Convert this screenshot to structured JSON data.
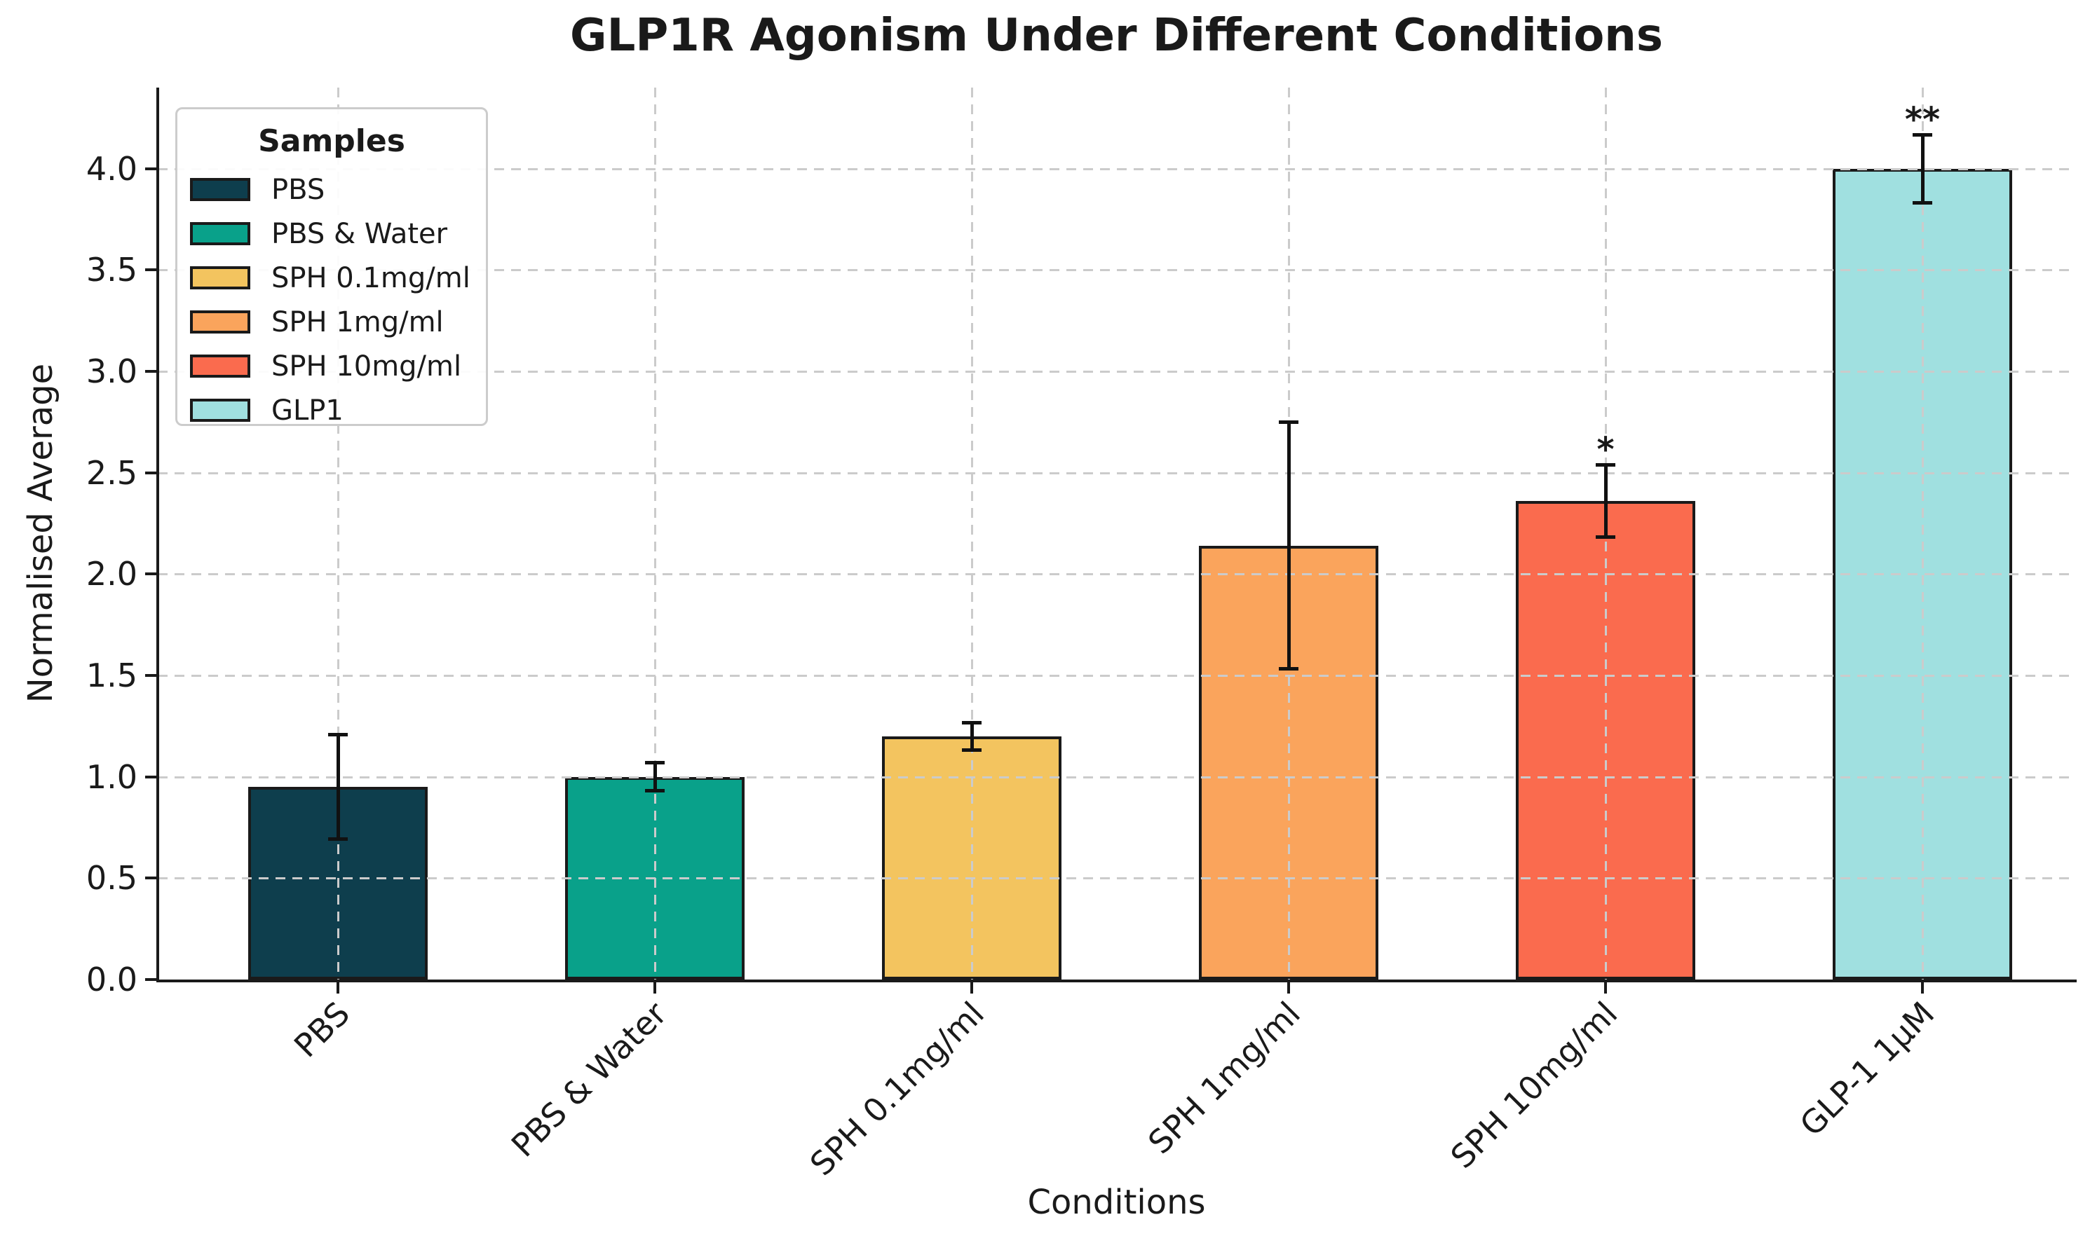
{
  "chart_data": {
    "type": "bar",
    "title": "GLP1R Agonism Under Different Conditions",
    "xlabel": "Conditions",
    "ylabel": "Normalised Average",
    "categories": [
      "PBS",
      "PBS & Water",
      "SPH 0.1mg/ml",
      "SPH 1mg/ml",
      "SPH 10mg/ml",
      "GLP-1 1µM"
    ],
    "values": [
      0.95,
      1.0,
      1.2,
      2.14,
      2.36,
      4.0
    ],
    "errors": [
      0.26,
      0.07,
      0.07,
      0.61,
      0.18,
      0.17
    ],
    "annotations": [
      "",
      "",
      "",
      "",
      "*",
      "**"
    ],
    "bar_colors": [
      "#0E3E4D",
      "#09A18A",
      "#F3C45F",
      "#FAA45C",
      "#FA6B4E",
      "#A0E0E0"
    ],
    "bar_edge_color": "#1a1a1a",
    "error_bar_color": "#111111",
    "grid_color": "#cbcbcb",
    "grid_style": "dashed",
    "ylim": [
      0,
      4.4
    ],
    "yticks": [
      "0.0",
      "0.5",
      "1.0",
      "1.5",
      "2.0",
      "2.5",
      "3.0",
      "3.5",
      "4.0"
    ],
    "legend": {
      "title": "Samples",
      "position": "upper left",
      "entries": [
        {
          "label": "PBS",
          "color": "#0E3E4D"
        },
        {
          "label": "PBS & Water",
          "color": "#09A18A"
        },
        {
          "label": "SPH 0.1mg/ml",
          "color": "#F3C45F"
        },
        {
          "label": "SPH 1mg/ml",
          "color": "#FAA45C"
        },
        {
          "label": "SPH 10mg/ml",
          "color": "#FA6B4E"
        },
        {
          "label": "GLP1",
          "color": "#A0E0E0"
        }
      ]
    }
  }
}
